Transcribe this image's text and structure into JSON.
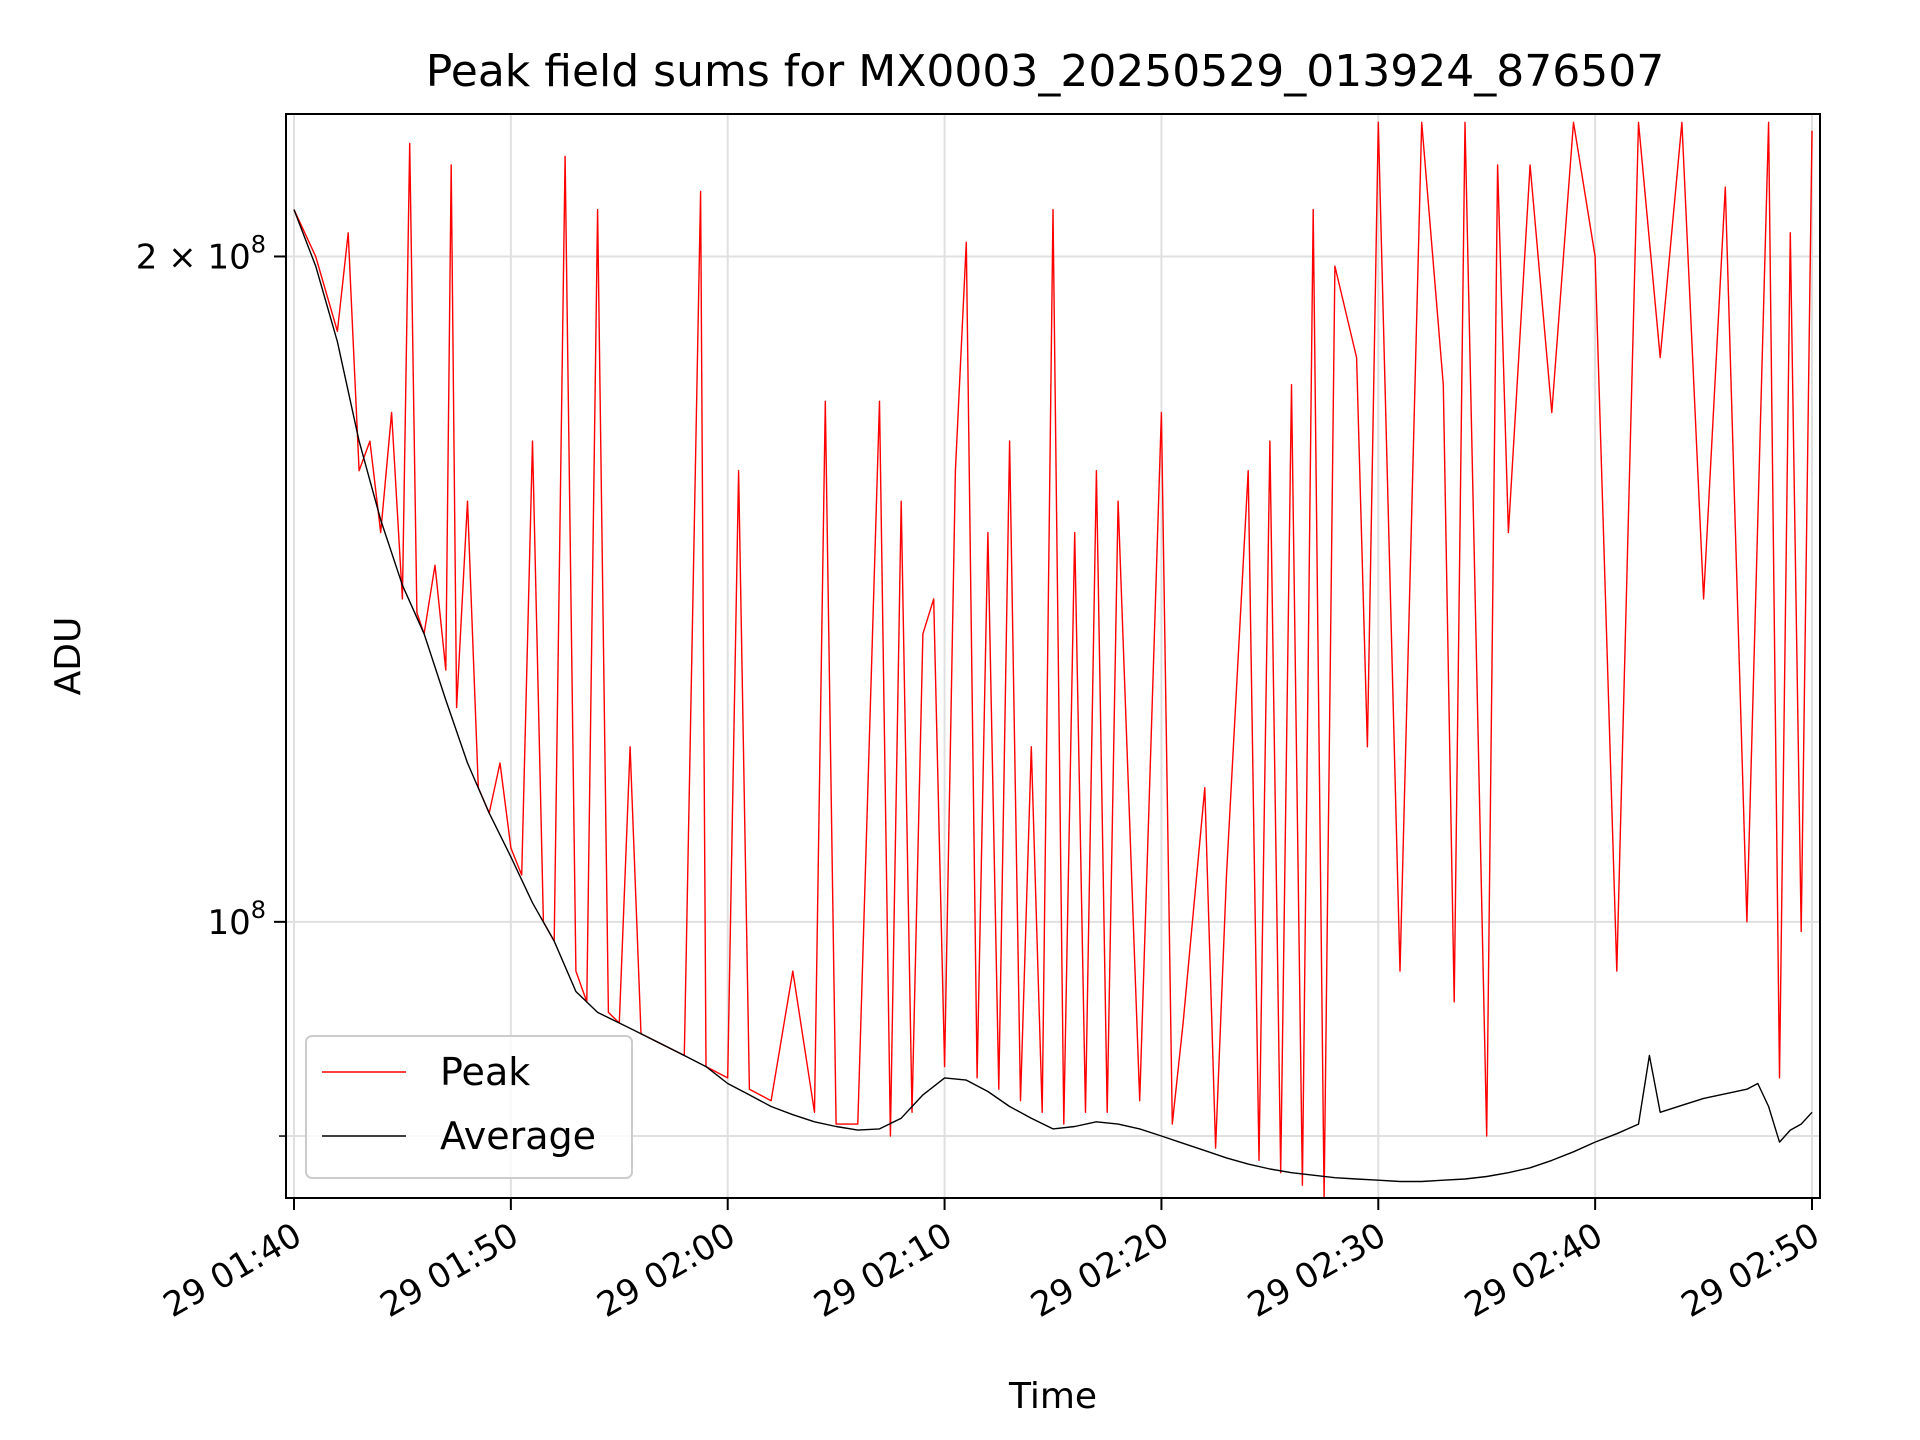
{
  "chart_data": {
    "type": "line",
    "title": "Peak field sums for MX0003_20250529_013924_876507",
    "xlabel": "Time",
    "ylabel": "ADU",
    "y_scale": "log",
    "grid": true,
    "legend_position": "lower-left",
    "x_ticks": [
      "29 01:40",
      "29 01:50",
      "29 02:00",
      "29 02:10",
      "29 02:20",
      "29 02:30",
      "29 02:40",
      "29 02:50"
    ],
    "y_major_ticks": [
      {
        "value": 100000000,
        "label_base": "10",
        "label_exp": "8",
        "label_prefix": ""
      },
      {
        "value": 200000000,
        "label_base": "10",
        "label_exp": "8",
        "label_prefix": "2 × "
      }
    ],
    "y_minor_ticks": [
      80000000
    ],
    "series": [
      {
        "name": "Peak",
        "color": "#ff0000",
        "points": [
          [
            "29 01:40",
            210000000
          ],
          [
            "29 01:41",
            200000000
          ],
          [
            "29 01:42",
            185000000
          ],
          [
            "29 01:42:30",
            205000000
          ],
          [
            "29 01:43",
            160000000
          ],
          [
            "29 01:43:30",
            165000000
          ],
          [
            "29 01:44",
            150000000
          ],
          [
            "29 01:44:30",
            170000000
          ],
          [
            "29 01:45",
            140000000
          ],
          [
            "29 01:45:20",
            225000000
          ],
          [
            "29 01:45:40",
            138000000
          ],
          [
            "29 01:46",
            135000000
          ],
          [
            "29 01:46:30",
            145000000
          ],
          [
            "29 01:47",
            130000000
          ],
          [
            "29 01:47:15",
            220000000
          ],
          [
            "29 01:47:30",
            125000000
          ],
          [
            "29 01:48",
            155000000
          ],
          [
            "29 01:48:30",
            115000000
          ],
          [
            "29 01:49",
            112000000
          ],
          [
            "29 01:49:30",
            118000000
          ],
          [
            "29 01:50",
            108000000
          ],
          [
            "29 01:50:30",
            105000000
          ],
          [
            "29 01:51",
            165000000
          ],
          [
            "29 01:51:30",
            100000000
          ],
          [
            "29 01:52",
            98000000
          ],
          [
            "29 01:52:30",
            222000000
          ],
          [
            "29 01:53",
            95000000
          ],
          [
            "29 01:53:30",
            92000000
          ],
          [
            "29 01:54",
            210000000
          ],
          [
            "29 01:54:30",
            91000000
          ],
          [
            "29 01:55",
            90000000
          ],
          [
            "29 01:55:30",
            120000000
          ],
          [
            "29 01:56",
            89000000
          ],
          [
            "29 01:57",
            88000000
          ],
          [
            "29 01:58",
            87000000
          ],
          [
            "29 01:58:45",
            214000000
          ],
          [
            "29 01:59",
            86000000
          ],
          [
            "29 02:00",
            85000000
          ],
          [
            "29 02:00:30",
            160000000
          ],
          [
            "29 02:01",
            84000000
          ],
          [
            "29 02:02",
            83000000
          ],
          [
            "29 02:03",
            95000000
          ],
          [
            "29 02:04",
            82000000
          ],
          [
            "29 02:04:30",
            172000000
          ],
          [
            "29 02:05",
            81000000
          ],
          [
            "29 02:06",
            81000000
          ],
          [
            "29 02:07",
            172000000
          ],
          [
            "29 02:07:30",
            80000000
          ],
          [
            "29 02:08",
            155000000
          ],
          [
            "29 02:08:30",
            82000000
          ],
          [
            "29 02:09",
            135000000
          ],
          [
            "29 02:09:30",
            140000000
          ],
          [
            "29 02:10",
            86000000
          ],
          [
            "29 02:10:30",
            160000000
          ],
          [
            "29 02:11",
            203000000
          ],
          [
            "29 02:11:30",
            85000000
          ],
          [
            "29 02:12",
            150000000
          ],
          [
            "29 02:12:30",
            84000000
          ],
          [
            "29 02:13",
            165000000
          ],
          [
            "29 02:13:30",
            83000000
          ],
          [
            "29 02:14",
            120000000
          ],
          [
            "29 02:14:30",
            82000000
          ],
          [
            "29 02:15",
            210000000
          ],
          [
            "29 02:15:30",
            81000000
          ],
          [
            "29 02:16",
            150000000
          ],
          [
            "29 02:16:30",
            82000000
          ],
          [
            "29 02:17",
            160000000
          ],
          [
            "29 02:17:30",
            82000000
          ],
          [
            "29 02:18",
            155000000
          ],
          [
            "29 02:19",
            83000000
          ],
          [
            "29 02:20",
            170000000
          ],
          [
            "29 02:20:30",
            81000000
          ],
          [
            "29 02:21",
            90000000
          ],
          [
            "29 02:22",
            115000000
          ],
          [
            "29 02:22:30",
            79000000
          ],
          [
            "29 02:23",
            105000000
          ],
          [
            "29 02:24",
            160000000
          ],
          [
            "29 02:24:30",
            78000000
          ],
          [
            "29 02:25",
            165000000
          ],
          [
            "29 02:25:30",
            77000000
          ],
          [
            "29 02:26",
            175000000
          ],
          [
            "29 02:26:30",
            76000000
          ],
          [
            "29 02:27",
            210000000
          ],
          [
            "29 02:27:30",
            75000000
          ],
          [
            "29 02:28",
            198000000
          ],
          [
            "29 02:29",
            180000000
          ],
          [
            "29 02:29:30",
            120000000
          ],
          [
            "29 02:30",
            230000000
          ],
          [
            "29 02:31",
            95000000
          ],
          [
            "29 02:32",
            230000000
          ],
          [
            "29 02:33",
            175000000
          ],
          [
            "29 02:33:30",
            92000000
          ],
          [
            "29 02:34",
            230000000
          ],
          [
            "29 02:35",
            80000000
          ],
          [
            "29 02:35:30",
            220000000
          ],
          [
            "29 02:36",
            150000000
          ],
          [
            "29 02:37",
            220000000
          ],
          [
            "29 02:38",
            170000000
          ],
          [
            "29 02:39",
            230000000
          ],
          [
            "29 02:40",
            200000000
          ],
          [
            "29 02:41",
            95000000
          ],
          [
            "29 02:42",
            230000000
          ],
          [
            "29 02:43",
            180000000
          ],
          [
            "29 02:44",
            230000000
          ],
          [
            "29 02:45",
            140000000
          ],
          [
            "29 02:46",
            215000000
          ],
          [
            "29 02:47",
            100000000
          ],
          [
            "29 02:48",
            230000000
          ],
          [
            "29 02:48:30",
            85000000
          ],
          [
            "29 02:49",
            205000000
          ],
          [
            "29 02:49:30",
            99000000
          ],
          [
            "29 02:50",
            228000000
          ]
        ]
      },
      {
        "name": "Average",
        "color": "#000000",
        "points": [
          [
            "29 01:40",
            210000000
          ],
          [
            "29 01:41",
            198000000
          ],
          [
            "29 01:42",
            183000000
          ],
          [
            "29 01:43",
            165000000
          ],
          [
            "29 01:44",
            152000000
          ],
          [
            "29 01:45",
            142000000
          ],
          [
            "29 01:46",
            135000000
          ],
          [
            "29 01:47",
            126000000
          ],
          [
            "29 01:48",
            118000000
          ],
          [
            "29 01:49",
            112000000
          ],
          [
            "29 01:50",
            107000000
          ],
          [
            "29 01:51",
            102000000
          ],
          [
            "29 01:52",
            98000000
          ],
          [
            "29 01:53",
            93000000
          ],
          [
            "29 01:54",
            91000000
          ],
          [
            "29 01:55",
            90000000
          ],
          [
            "29 01:56",
            89000000
          ],
          [
            "29 01:57",
            88000000
          ],
          [
            "29 01:58",
            87000000
          ],
          [
            "29 01:59",
            86000000
          ],
          [
            "29 02:00",
            84500000
          ],
          [
            "29 02:01",
            83500000
          ],
          [
            "29 02:02",
            82500000
          ],
          [
            "29 02:03",
            81800000
          ],
          [
            "29 02:04",
            81200000
          ],
          [
            "29 02:05",
            80800000
          ],
          [
            "29 02:06",
            80500000
          ],
          [
            "29 02:07",
            80600000
          ],
          [
            "29 02:08",
            81500000
          ],
          [
            "29 02:09",
            83500000
          ],
          [
            "29 02:10",
            85000000
          ],
          [
            "29 02:11",
            84800000
          ],
          [
            "29 02:12",
            83800000
          ],
          [
            "29 02:13",
            82500000
          ],
          [
            "29 02:14",
            81500000
          ],
          [
            "29 02:15",
            80600000
          ],
          [
            "29 02:16",
            80800000
          ],
          [
            "29 02:17",
            81200000
          ],
          [
            "29 02:18",
            81000000
          ],
          [
            "29 02:19",
            80600000
          ],
          [
            "29 02:20",
            80000000
          ],
          [
            "29 02:21",
            79400000
          ],
          [
            "29 02:22",
            78800000
          ],
          [
            "29 02:23",
            78200000
          ],
          [
            "29 02:24",
            77700000
          ],
          [
            "29 02:25",
            77300000
          ],
          [
            "29 02:26",
            77000000
          ],
          [
            "29 02:27",
            76800000
          ],
          [
            "29 02:28",
            76600000
          ],
          [
            "29 02:29",
            76500000
          ],
          [
            "29 02:30",
            76400000
          ],
          [
            "29 02:31",
            76300000
          ],
          [
            "29 02:32",
            76300000
          ],
          [
            "29 02:33",
            76400000
          ],
          [
            "29 02:34",
            76500000
          ],
          [
            "29 02:35",
            76700000
          ],
          [
            "29 02:36",
            77000000
          ],
          [
            "29 02:37",
            77400000
          ],
          [
            "29 02:38",
            78000000
          ],
          [
            "29 02:39",
            78700000
          ],
          [
            "29 02:40",
            79500000
          ],
          [
            "29 02:41",
            80200000
          ],
          [
            "29 02:42",
            81000000
          ],
          [
            "29 02:42:30",
            87000000
          ],
          [
            "29 02:43",
            82000000
          ],
          [
            "29 02:44",
            82600000
          ],
          [
            "29 02:45",
            83200000
          ],
          [
            "29 02:46",
            83600000
          ],
          [
            "29 02:47",
            84000000
          ],
          [
            "29 02:47:30",
            84500000
          ],
          [
            "29 02:48",
            82500000
          ],
          [
            "29 02:48:30",
            79500000
          ],
          [
            "29 02:49",
            80500000
          ],
          [
            "29 02:49:30",
            81000000
          ],
          [
            "29 02:50",
            82000000
          ]
        ]
      }
    ]
  }
}
